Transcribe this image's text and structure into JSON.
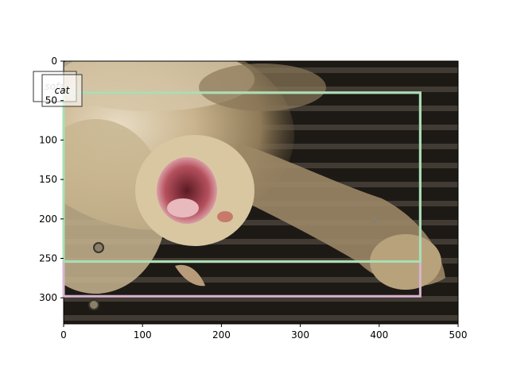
{
  "chart_data": {
    "type": "image-with-bounding-boxes",
    "image_size": [
      500,
      333
    ],
    "xlim": [
      0,
      500
    ],
    "ylim": [
      333,
      0
    ],
    "x_ticks": [
      0,
      100,
      200,
      300,
      400,
      500
    ],
    "y_ticks": [
      0,
      50,
      100,
      150,
      200,
      250,
      300
    ],
    "grid": false,
    "boxes": [
      {
        "label": "sofa",
        "x0": 0,
        "y0": 40,
        "x1": 452,
        "y1": 298,
        "color": "#d8b4cf"
      },
      {
        "label": "cat",
        "x0": 0,
        "y0": 40,
        "x1": 452,
        "y1": 254,
        "color": "#a8dfb4"
      }
    ]
  },
  "icons": {
    "photo": "cat-photo-icon"
  }
}
